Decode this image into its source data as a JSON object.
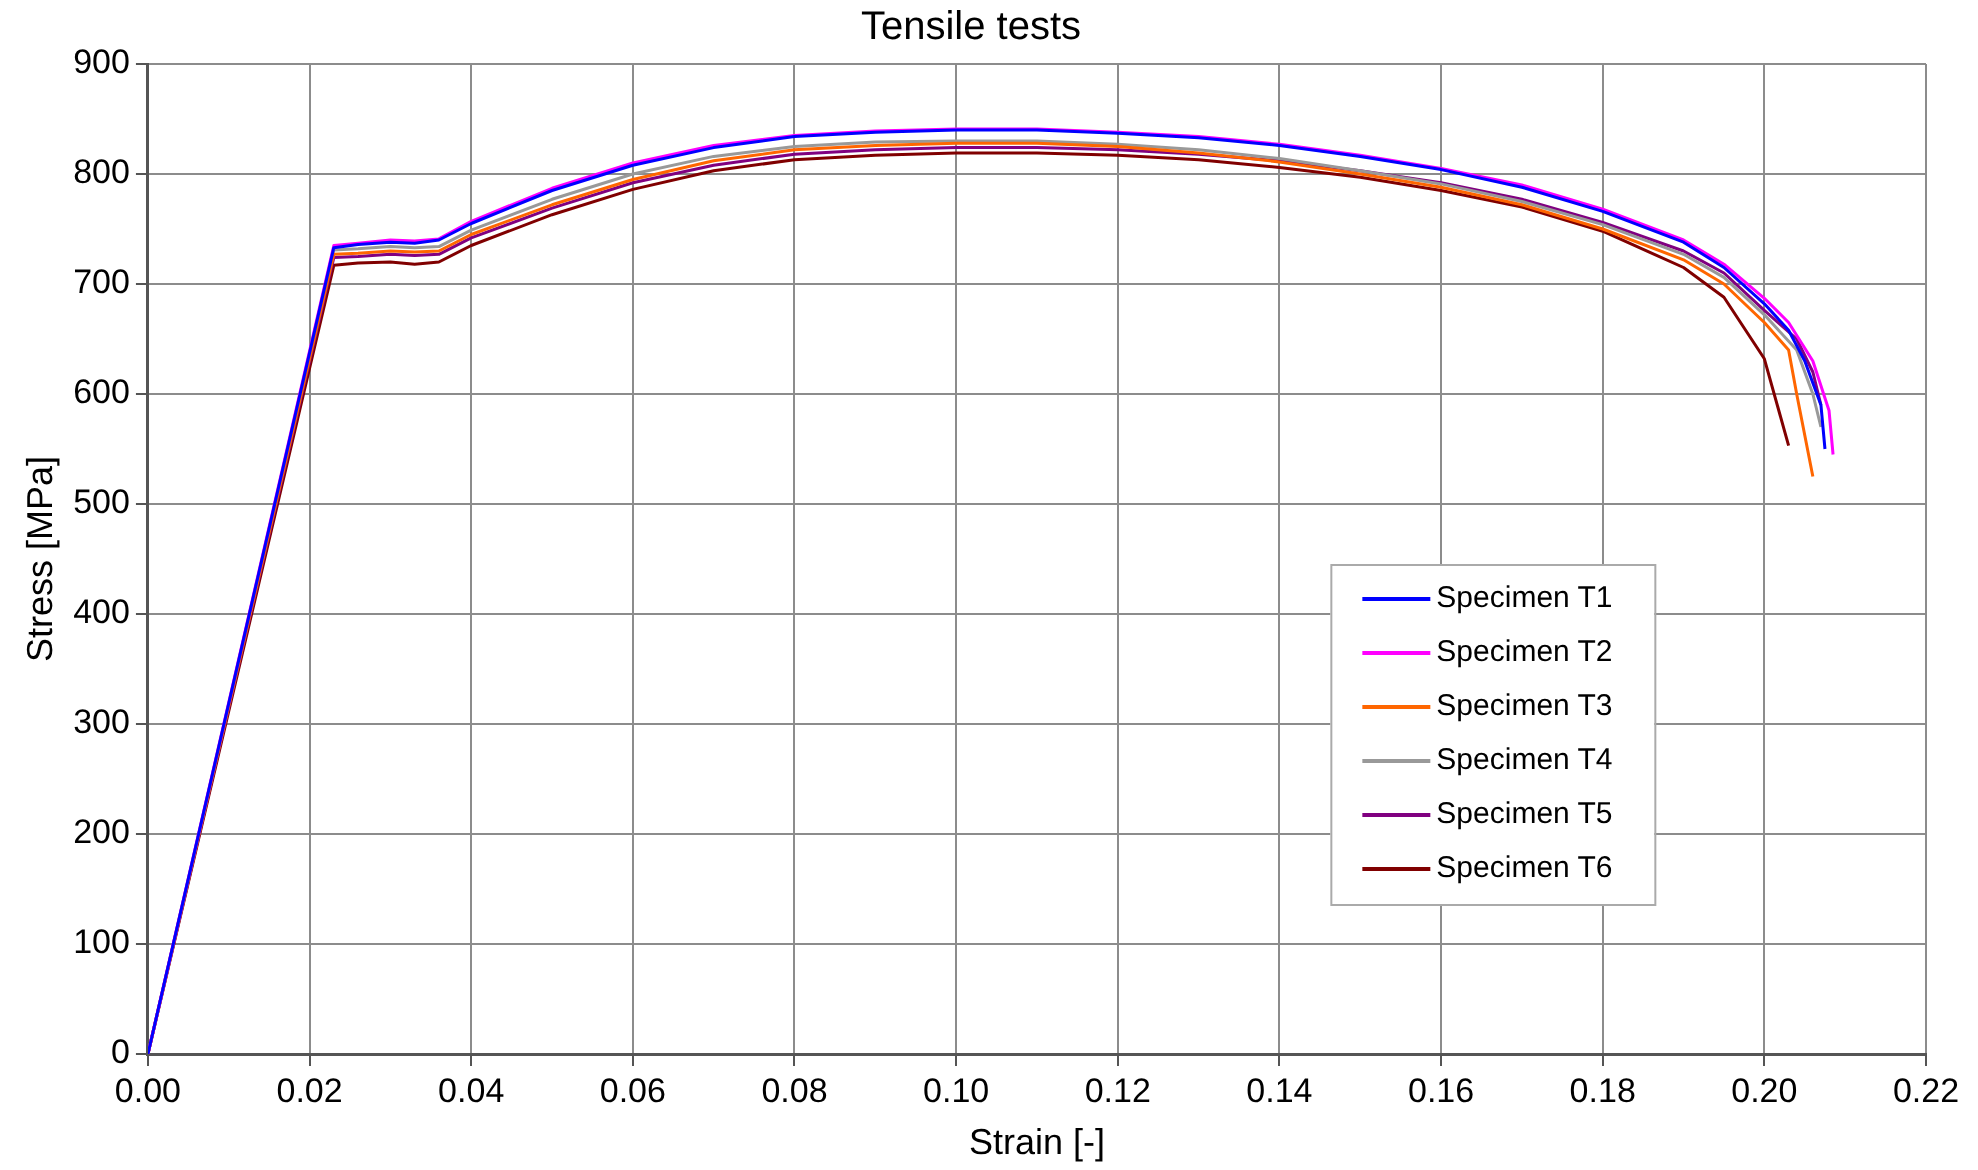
{
  "chart_data": {
    "type": "line",
    "title": "Tensile tests",
    "xlabel": "Strain [-]",
    "ylabel": "Stress [MPa]",
    "xlim": [
      0,
      0.22
    ],
    "xticks": [
      {
        "value": 0,
        "label": "0.00"
      },
      {
        "value": 0.02,
        "label": "0.02"
      },
      {
        "value": 0.04,
        "label": "0.04"
      },
      {
        "value": 0.06,
        "label": "0.06"
      },
      {
        "value": 0.08,
        "label": "0.08"
      },
      {
        "value": 0.1,
        "label": "0.10"
      },
      {
        "value": 0.12,
        "label": "0.12"
      },
      {
        "value": 0.14,
        "label": "0.14"
      },
      {
        "value": 0.16,
        "label": "0.16"
      },
      {
        "value": 0.18,
        "label": "0.18"
      },
      {
        "value": 0.2,
        "label": "0.20"
      },
      {
        "value": 0.22,
        "label": "0.22"
      }
    ],
    "ylim": [
      0,
      900
    ],
    "yticks": [
      0,
      100,
      200,
      300,
      400,
      500,
      600,
      700,
      800,
      900
    ],
    "grid": true,
    "legend": "center right",
    "marker": "none",
    "line_style": "solid",
    "series": [
      {
        "name": "Specimen T1",
        "color": "#0000ff",
        "x": [
          0,
          0.023,
          0.026,
          0.03,
          0.033,
          0.036,
          0.04,
          0.05,
          0.06,
          0.07,
          0.08,
          0.09,
          0.1,
          0.11,
          0.12,
          0.13,
          0.14,
          0.15,
          0.16,
          0.17,
          0.18,
          0.19,
          0.195,
          0.2,
          0.203,
          0.205,
          0.207,
          0.2075
        ],
        "values": [
          0,
          733,
          736,
          738,
          737,
          740,
          755,
          785,
          808,
          824,
          834,
          838,
          840,
          840,
          837,
          833,
          826,
          816,
          804,
          788,
          766,
          738,
          715,
          682,
          658,
          630,
          590,
          550
        ]
      },
      {
        "name": "Specimen T2",
        "color": "#ff00ff",
        "x": [
          0,
          0.023,
          0.026,
          0.03,
          0.033,
          0.036,
          0.04,
          0.05,
          0.06,
          0.07,
          0.08,
          0.09,
          0.1,
          0.11,
          0.12,
          0.13,
          0.14,
          0.15,
          0.16,
          0.17,
          0.18,
          0.19,
          0.195,
          0.2,
          0.203,
          0.206,
          0.208,
          0.2085
        ],
        "values": [
          0,
          735,
          737,
          740,
          739,
          741,
          757,
          787,
          810,
          826,
          835,
          839,
          841,
          841,
          838,
          834,
          827,
          817,
          805,
          790,
          768,
          740,
          718,
          687,
          665,
          630,
          585,
          545
        ]
      },
      {
        "name": "Specimen T3",
        "color": "#ff6600",
        "x": [
          0,
          0.023,
          0.026,
          0.03,
          0.033,
          0.036,
          0.04,
          0.05,
          0.06,
          0.07,
          0.08,
          0.09,
          0.1,
          0.11,
          0.12,
          0.13,
          0.14,
          0.15,
          0.16,
          0.17,
          0.18,
          0.19,
          0.195,
          0.2,
          0.203,
          0.204,
          0.206
        ],
        "values": [
          0,
          727,
          728,
          730,
          729,
          730,
          745,
          772,
          795,
          812,
          822,
          826,
          828,
          828,
          825,
          819,
          811,
          800,
          788,
          772,
          750,
          722,
          700,
          665,
          640,
          600,
          525
        ]
      },
      {
        "name": "Specimen T4",
        "color": "#999999",
        "x": [
          0,
          0.023,
          0.026,
          0.03,
          0.033,
          0.036,
          0.04,
          0.05,
          0.06,
          0.07,
          0.08,
          0.09,
          0.1,
          0.11,
          0.12,
          0.13,
          0.14,
          0.15,
          0.16,
          0.17,
          0.18,
          0.19,
          0.195,
          0.2,
          0.204,
          0.206,
          0.207
        ],
        "values": [
          0,
          731,
          732,
          734,
          733,
          734,
          749,
          777,
          800,
          816,
          825,
          829,
          830,
          830,
          827,
          822,
          814,
          803,
          791,
          775,
          754,
          727,
          706,
          672,
          640,
          600,
          570
        ]
      },
      {
        "name": "Specimen T5",
        "color": "#800080",
        "x": [
          0,
          0.023,
          0.026,
          0.03,
          0.033,
          0.036,
          0.04,
          0.05,
          0.06,
          0.07,
          0.08,
          0.09,
          0.1,
          0.11,
          0.12,
          0.13,
          0.14,
          0.15,
          0.16,
          0.17,
          0.18,
          0.19,
          0.195,
          0.2,
          0.204,
          0.206,
          0.207
        ],
        "values": [
          0,
          724,
          725,
          727,
          726,
          727,
          742,
          769,
          792,
          808,
          818,
          822,
          824,
          824,
          822,
          818,
          812,
          803,
          792,
          777,
          756,
          730,
          710,
          676,
          650,
          620,
          590
        ]
      },
      {
        "name": "Specimen T6",
        "color": "#800000",
        "x": [
          0,
          0.023,
          0.026,
          0.03,
          0.033,
          0.036,
          0.04,
          0.05,
          0.06,
          0.07,
          0.08,
          0.09,
          0.1,
          0.11,
          0.12,
          0.13,
          0.14,
          0.15,
          0.16,
          0.17,
          0.18,
          0.19,
          0.195,
          0.2,
          0.203
        ],
        "values": [
          0,
          717,
          719,
          720,
          718,
          720,
          735,
          763,
          786,
          803,
          813,
          817,
          819,
          819,
          817,
          813,
          806,
          797,
          785,
          770,
          748,
          715,
          688,
          632,
          553
        ]
      }
    ]
  }
}
